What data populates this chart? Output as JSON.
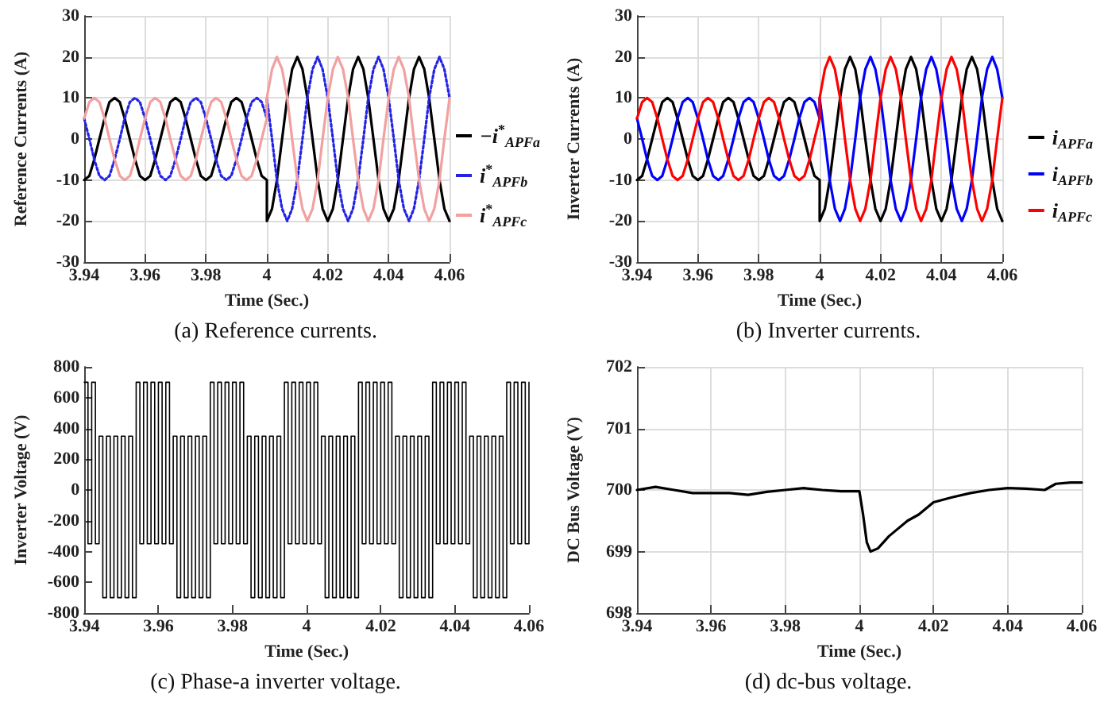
{
  "chart_data": [
    {
      "type": "line",
      "title": "(a) Reference currents.",
      "xlabel": "Time (Sec.)",
      "ylabel": "Reference Currents (A)",
      "xlim": [
        3.94,
        4.06
      ],
      "xticks": [
        3.94,
        3.96,
        3.98,
        4,
        4.02,
        4.04,
        4.06
      ],
      "ylim": [
        -30,
        30
      ],
      "yticks": [
        -30,
        -20,
        -10,
        0,
        10,
        20,
        30
      ],
      "grid": true,
      "legend": "right",
      "marker": "none",
      "x": [
        3.94,
        3.9417,
        3.9433,
        3.945,
        3.9467,
        3.9483,
        3.95,
        3.9517,
        3.9533,
        3.955,
        3.9567,
        3.9583,
        3.96,
        3.9617,
        3.9633,
        3.965,
        3.9667,
        3.9683,
        3.97,
        3.9717,
        3.9733,
        3.975,
        3.9767,
        3.9783,
        3.98,
        3.9817,
        3.9833,
        3.985,
        3.9867,
        3.9883,
        3.99,
        3.9917,
        3.9933,
        3.995,
        3.9967,
        3.9983,
        4,
        4,
        4.0017,
        4.0033,
        4.005,
        4.0067,
        4.0083,
        4.01,
        4.0117,
        4.0133,
        4.015,
        4.0167,
        4.0183,
        4.02,
        4.0217,
        4.0233,
        4.025,
        4.0267,
        4.0283,
        4.03,
        4.0317,
        4.0333,
        4.035,
        4.0367,
        4.0383,
        4.04,
        4.0417,
        4.0433,
        4.045,
        4.0467,
        4.0483,
        4.05,
        4.0517,
        4.0533,
        4.055,
        4.0567,
        4.0583,
        4.06
      ],
      "series": [
        {
          "name": "−i$^{*}$$_{APFa}$",
          "color": "#000000",
          "line_style": "solid",
          "values": [
            -10,
            -9,
            -5,
            0,
            5,
            9,
            10,
            9,
            5,
            0,
            -5,
            -9,
            -10,
            -9,
            -5,
            0,
            5,
            9,
            10,
            9,
            5,
            0,
            -5,
            -9,
            -10,
            -9,
            -5,
            0,
            5,
            9,
            10,
            9,
            5,
            0,
            -5,
            -9,
            -10,
            -20,
            -17,
            -10,
            0,
            10,
            17,
            20,
            17,
            10,
            0,
            -10,
            -17,
            -20,
            -17,
            -10,
            0,
            10,
            17,
            20,
            17,
            10,
            0,
            -10,
            -17,
            -20,
            -17,
            -10,
            0,
            10,
            17,
            20,
            17,
            10,
            0,
            -10,
            -17,
            -20
          ]
        },
        {
          "name": "i$^{*}$$_{APFb}$",
          "color": "#2323e6",
          "line_style": "dotted",
          "values": [
            5,
            0,
            -5,
            -9,
            -10,
            -9,
            -5,
            0,
            5,
            9,
            10,
            9,
            5,
            0,
            -5,
            -9,
            -10,
            -9,
            -5,
            0,
            5,
            9,
            10,
            9,
            5,
            0,
            -5,
            -9,
            -10,
            -9,
            -5,
            0,
            5,
            9,
            10,
            9,
            5,
            10,
            0,
            -10,
            -17,
            -20,
            -17,
            -10,
            0,
            10,
            17,
            20,
            17,
            10,
            0,
            -10,
            -17,
            -20,
            -17,
            -10,
            0,
            10,
            17,
            20,
            17,
            10,
            0,
            -10,
            -17,
            -20,
            -17,
            -10,
            0,
            10,
            17,
            20,
            17,
            10
          ]
        },
        {
          "name": "i$^{*}$$_{APFc}$",
          "color": "#f2a0a0",
          "line_style": "solid",
          "values": [
            5,
            9,
            10,
            9,
            5,
            0,
            -5,
            -9,
            -10,
            -9,
            -5,
            0,
            5,
            9,
            10,
            9,
            5,
            0,
            -5,
            -9,
            -10,
            -9,
            -5,
            0,
            5,
            9,
            10,
            9,
            5,
            0,
            -5,
            -9,
            -10,
            -9,
            -5,
            0,
            5,
            10,
            17,
            20,
            17,
            10,
            0,
            -10,
            -17,
            -20,
            -17,
            -10,
            0,
            10,
            17,
            20,
            17,
            10,
            0,
            -10,
            -17,
            -20,
            -17,
            -10,
            0,
            10,
            17,
            20,
            17,
            10,
            0,
            -10,
            -17,
            -20,
            -17,
            -10,
            0,
            10
          ]
        }
      ]
    },
    {
      "type": "line",
      "title": "(b) Inverter currents.",
      "xlabel": "Time (Sec.)",
      "ylabel": "Inverter Currents (A)",
      "xlim": [
        3.94,
        4.06
      ],
      "xticks": [
        3.94,
        3.96,
        3.98,
        4,
        4.02,
        4.04,
        4.06
      ],
      "ylim": [
        -30,
        30
      ],
      "yticks": [
        -30,
        -20,
        -10,
        0,
        10,
        20,
        30
      ],
      "grid": true,
      "legend": "right",
      "marker": "none",
      "x": [
        3.94,
        3.9417,
        3.9433,
        3.945,
        3.9467,
        3.9483,
        3.95,
        3.9517,
        3.9533,
        3.955,
        3.9567,
        3.9583,
        3.96,
        3.9617,
        3.9633,
        3.965,
        3.9667,
        3.9683,
        3.97,
        3.9717,
        3.9733,
        3.975,
        3.9767,
        3.9783,
        3.98,
        3.9817,
        3.9833,
        3.985,
        3.9867,
        3.9883,
        3.99,
        3.9917,
        3.9933,
        3.995,
        3.9967,
        3.9983,
        4,
        4,
        4.0017,
        4.0033,
        4.005,
        4.0067,
        4.0083,
        4.01,
        4.0117,
        4.0133,
        4.015,
        4.0167,
        4.0183,
        4.02,
        4.0217,
        4.0233,
        4.025,
        4.0267,
        4.0283,
        4.03,
        4.0317,
        4.0333,
        4.035,
        4.0367,
        4.0383,
        4.04,
        4.0417,
        4.0433,
        4.045,
        4.0467,
        4.0483,
        4.05,
        4.0517,
        4.0533,
        4.055,
        4.0567,
        4.0583,
        4.06
      ],
      "series": [
        {
          "name": "i$_{APFa}$",
          "color": "#000000",
          "values": [
            -10,
            -9,
            -5,
            0,
            5,
            9,
            10,
            9,
            5,
            0,
            -5,
            -9,
            -10,
            -9,
            -5,
            0,
            5,
            9,
            10,
            9,
            5,
            0,
            -5,
            -9,
            -10,
            -9,
            -5,
            0,
            5,
            9,
            10,
            9,
            5,
            0,
            -5,
            -9,
            -10,
            -20,
            -17,
            -10,
            0,
            10,
            17,
            20,
            17,
            10,
            0,
            -10,
            -17,
            -20,
            -17,
            -10,
            0,
            10,
            17,
            20,
            17,
            10,
            0,
            -10,
            -17,
            -20,
            -17,
            -10,
            0,
            10,
            17,
            20,
            17,
            10,
            0,
            -10,
            -17,
            -20
          ]
        },
        {
          "name": "i$_{APFb}$",
          "color": "#0000ff",
          "values": [
            5,
            0,
            -5,
            -9,
            -10,
            -9,
            -5,
            0,
            5,
            9,
            10,
            9,
            5,
            0,
            -5,
            -9,
            -10,
            -9,
            -5,
            0,
            5,
            9,
            10,
            9,
            5,
            0,
            -5,
            -9,
            -10,
            -9,
            -5,
            0,
            5,
            9,
            10,
            9,
            5,
            10,
            0,
            -10,
            -17,
            -20,
            -17,
            -10,
            0,
            10,
            17,
            20,
            17,
            10,
            0,
            -10,
            -17,
            -20,
            -17,
            -10,
            0,
            10,
            17,
            20,
            17,
            10,
            0,
            -10,
            -17,
            -20,
            -17,
            -10,
            0,
            10,
            17,
            20,
            17,
            10
          ]
        },
        {
          "name": "i$_{APFc}$",
          "color": "#ff0000",
          "values": [
            5,
            9,
            10,
            9,
            5,
            0,
            -5,
            -9,
            -10,
            -9,
            -5,
            0,
            5,
            9,
            10,
            9,
            5,
            0,
            -5,
            -9,
            -10,
            -9,
            -5,
            0,
            5,
            9,
            10,
            9,
            5,
            0,
            -5,
            -9,
            -10,
            -9,
            -5,
            0,
            5,
            10,
            17,
            20,
            17,
            10,
            0,
            -10,
            -17,
            -20,
            -17,
            -10,
            0,
            10,
            17,
            20,
            17,
            10,
            0,
            -10,
            -17,
            -20,
            -17,
            -10,
            0,
            10,
            17,
            20,
            17,
            10,
            0,
            -10,
            -17,
            -20,
            -17,
            -10,
            0,
            10
          ]
        }
      ]
    },
    {
      "type": "step",
      "title": "(c) Phase-a inverter voltage.",
      "xlabel": "Time (Sec.)",
      "ylabel": "Inverter Voltage (V)",
      "xlim": [
        3.94,
        4.06
      ],
      "xticks": [
        3.94,
        3.96,
        3.98,
        4,
        4.02,
        4.04,
        4.06
      ],
      "ylim": [
        -800,
        800
      ],
      "yticks": [
        -800,
        -600,
        -400,
        -200,
        0,
        200,
        400,
        600,
        800
      ],
      "marker": "none",
      "x": [
        3.94,
        3.941,
        3.942,
        3.943,
        3.944,
        3.945,
        3.946,
        3.947,
        3.948,
        3.949,
        3.95,
        3.951,
        3.952,
        3.953,
        3.954,
        3.955,
        3.956,
        3.957,
        3.958,
        3.959,
        3.96,
        3.961,
        3.962,
        3.963,
        3.964,
        3.965,
        3.966,
        3.967,
        3.968,
        3.969,
        3.97,
        3.971,
        3.972,
        3.973,
        3.974,
        3.975,
        3.976,
        3.977,
        3.978,
        3.979,
        3.98,
        3.981,
        3.982,
        3.983,
        3.984,
        3.985,
        3.986,
        3.987,
        3.988,
        3.989,
        3.99,
        3.991,
        3.992,
        3.993,
        3.994,
        3.995,
        3.996,
        3.997,
        3.998,
        3.999,
        4,
        4.001,
        4.002,
        4.003,
        4.004,
        4.005,
        4.006,
        4.007,
        4.008,
        4.009,
        4.01,
        4.011,
        4.012,
        4.013,
        4.014,
        4.015,
        4.016,
        4.017,
        4.018,
        4.019,
        4.02,
        4.021,
        4.022,
        4.023,
        4.024,
        4.025,
        4.026,
        4.027,
        4.028,
        4.029,
        4.03,
        4.031,
        4.032,
        4.033,
        4.034,
        4.035,
        4.036,
        4.037,
        4.038,
        4.039,
        4.04,
        4.041,
        4.042,
        4.043,
        4.044,
        4.045,
        4.046,
        4.047,
        4.048,
        4.049,
        4.05,
        4.051,
        4.052,
        4.053,
        4.054,
        4.055,
        4.056,
        4.057,
        4.058,
        4.059,
        4.06
      ],
      "series": [
        {
          "color": "#000000",
          "values": [
            700,
            -350,
            700,
            -350,
            350,
            -700,
            350,
            -700,
            350,
            -700,
            350,
            -700,
            350,
            -700,
            700,
            -350,
            700,
            -350,
            700,
            -350,
            700,
            -350,
            700,
            -350,
            350,
            -700,
            350,
            -700,
            350,
            -700,
            350,
            -700,
            350,
            -700,
            700,
            -350,
            700,
            -350,
            700,
            -350,
            700,
            -350,
            700,
            -350,
            350,
            -700,
            350,
            -700,
            350,
            -700,
            350,
            -700,
            350,
            -700,
            700,
            -350,
            700,
            -350,
            700,
            -350,
            700,
            -350,
            700,
            -350,
            350,
            -700,
            350,
            -700,
            350,
            -700,
            350,
            -700,
            350,
            -700,
            700,
            -350,
            700,
            -350,
            700,
            -350,
            700,
            -350,
            700,
            -350,
            350,
            -700,
            350,
            -700,
            350,
            -700,
            350,
            -700,
            350,
            -700,
            700,
            -350,
            700,
            -350,
            700,
            -350,
            700,
            -350,
            700,
            -350,
            350,
            -700,
            350,
            -700,
            350,
            -700,
            350,
            -700,
            350,
            -700,
            700,
            -350,
            700,
            -350,
            700,
            -350,
            700
          ]
        }
      ]
    },
    {
      "type": "line",
      "title": "(d) dc-bus voltage.",
      "xlabel": "Time (Sec.)",
      "ylabel": "DC Bus Voltage (V)",
      "xlim": [
        3.94,
        4.06
      ],
      "xticks": [
        3.94,
        3.96,
        3.98,
        4,
        4.02,
        4.04,
        4.06
      ],
      "ylim": [
        698,
        702
      ],
      "yticks": [
        698,
        699,
        700,
        701,
        702
      ],
      "grid": true,
      "marker": "none",
      "x": [
        3.94,
        3.945,
        3.95,
        3.955,
        3.96,
        3.965,
        3.97,
        3.975,
        3.98,
        3.985,
        3.99,
        3.995,
        4,
        4.001,
        4.002,
        4.003,
        4.005,
        4.008,
        4.01,
        4.013,
        4.016,
        4.02,
        4.025,
        4.03,
        4.035,
        4.04,
        4.045,
        4.05,
        4.053,
        4.057,
        4.06
      ],
      "series": [
        {
          "color": "#000000",
          "values": [
            700,
            700.05,
            700,
            699.95,
            699.95,
            699.95,
            699.92,
            699.97,
            700,
            700.03,
            700,
            699.98,
            699.98,
            699.6,
            699.15,
            699,
            699.05,
            699.25,
            699.35,
            699.5,
            699.6,
            699.8,
            699.88,
            699.95,
            700,
            700.03,
            700.02,
            700,
            700.1,
            700.12,
            700.12
          ]
        }
      ]
    }
  ]
}
